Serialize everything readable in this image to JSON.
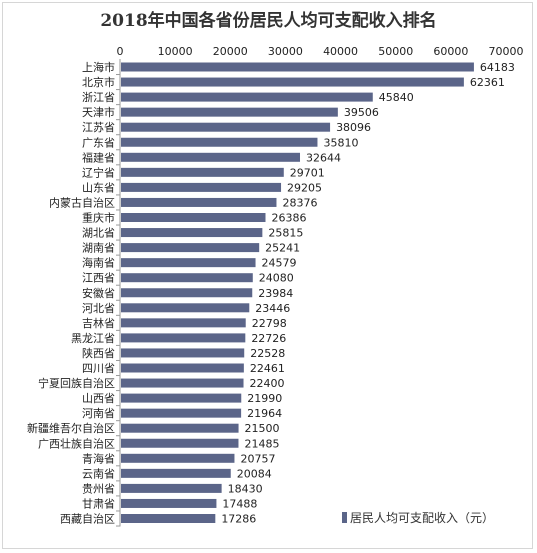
{
  "chart_data": {
    "type": "bar",
    "orientation": "horizontal",
    "title": "2018年中国各省份居民人均可支配收入排名",
    "xlim": [
      0,
      70000
    ],
    "xticks": [
      "0",
      "10000",
      "20000",
      "30000",
      "40000",
      "50000",
      "60000",
      "70000"
    ],
    "axis_position": "top",
    "legend": {
      "label": "居民人均可支配收入（元）",
      "placement": "bottom-right"
    },
    "bar_color": "#5b6589",
    "categories": [
      "上海市",
      "北京市",
      "浙江省",
      "天津市",
      "江苏省",
      "广东省",
      "福建省",
      "辽宁省",
      "山东省",
      "内蒙古自治区",
      "重庆市",
      "湖北省",
      "湖南省",
      "海南省",
      "江西省",
      "安徽省",
      "河北省",
      "吉林省",
      "黑龙江省",
      "陕西省",
      "四川省",
      "宁夏回族自治区",
      "山西省",
      "河南省",
      "新疆维吾尔自治区",
      "广西壮族自治区",
      "青海省",
      "云南省",
      "贵州省",
      "甘肃省",
      "西藏自治区"
    ],
    "values": [
      64183,
      62361,
      45840,
      39506,
      38096,
      35810,
      32644,
      29701,
      29205,
      28376,
      26386,
      25815,
      25241,
      24579,
      24080,
      23984,
      23446,
      22798,
      22726,
      22528,
      22461,
      22400,
      21990,
      21964,
      21500,
      21485,
      20757,
      20084,
      18430,
      17488,
      17286
    ]
  }
}
